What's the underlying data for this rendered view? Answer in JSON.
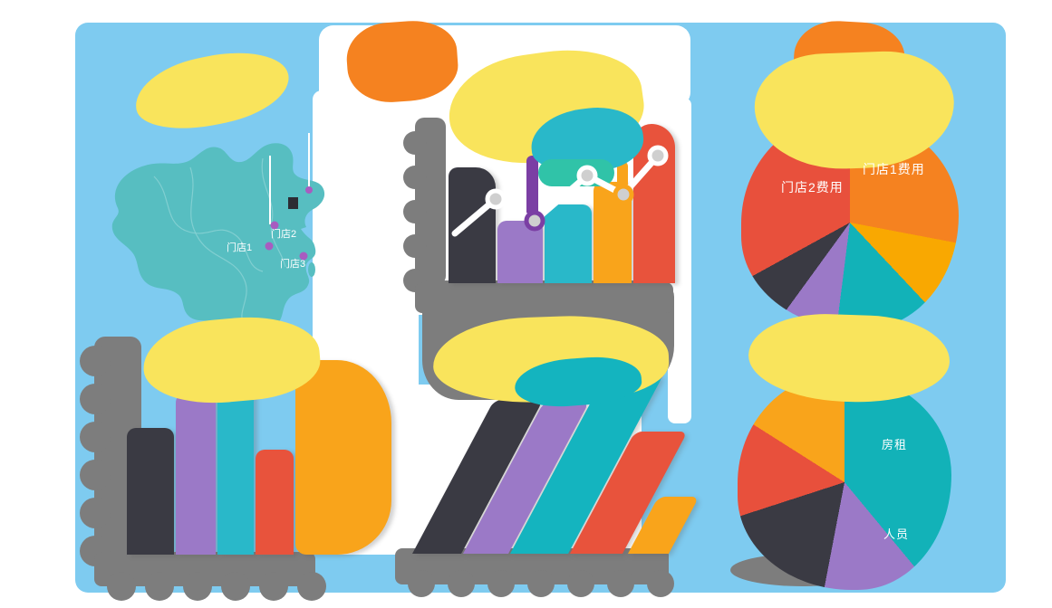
{
  "canvas": {
    "page_background": "#ffffff",
    "board_background": "#7ecbf0"
  },
  "palette": {
    "yellow": "#f9e45c",
    "orange": "#f58220",
    "amber": "#f9a41b",
    "red": "#e8533c",
    "dark": "#3a3a43",
    "purple": "#9b79c7",
    "dark_purple": "#7b3fa4",
    "cyan": "#29b8c9",
    "green_teal": "#30c3a8",
    "map_teal": "#57bec1",
    "pie_teal": "#12b2b8",
    "axis_gray": "#7d7d7d",
    "dot_gray": "#cfcfcf",
    "label_text": "#ffffff"
  },
  "chart_data": [
    {
      "type": "map",
      "name": "store-locations-map",
      "region_style": "china-silhouette",
      "markers": [
        {
          "label": "门店1"
        },
        {
          "label": "门店2"
        },
        {
          "label": "门店3"
        }
      ]
    },
    {
      "type": "bar",
      "name": "trend-bar-line-combo",
      "bars": {
        "values": [
          72,
          39,
          49,
          63,
          99
        ],
        "colors": [
          "#3a3a43",
          "#9b79c7",
          "#29b8c9",
          "#f9a41b",
          "#e8533c"
        ]
      },
      "line": {
        "values": [
          31,
          52,
          39,
          67,
          55,
          79
        ],
        "dot_indices": [
          1,
          2,
          3,
          4,
          5
        ]
      },
      "ylim": [
        0,
        100
      ],
      "gridlines": false
    },
    {
      "type": "pie",
      "name": "store-expense-share-pie",
      "start_angle": 0,
      "slices": [
        {
          "label": "门店1费用",
          "value": 28,
          "color": "#f58220"
        },
        {
          "label": "",
          "value": 10,
          "color": "#f9a801"
        },
        {
          "label": "",
          "value": 14,
          "color": "#12b2b8"
        },
        {
          "label": "",
          "value": 8,
          "color": "#9b79c7"
        },
        {
          "label": "",
          "value": 7,
          "color": "#3a3a43"
        },
        {
          "label": "门店2费用",
          "value": 33,
          "color": "#e8503c"
        }
      ]
    },
    {
      "type": "bar",
      "name": "store-comparison-bars",
      "values": [
        65,
        83,
        86,
        54,
        100
      ],
      "colors": [
        "#3a3a43",
        "#9b79c7",
        "#29b8c9",
        "#e8533c",
        "#f9a41b"
      ],
      "ylim": [
        0,
        100
      ],
      "gridlines": false
    },
    {
      "type": "bar",
      "name": "slanted-comparison-bars",
      "style": "skewed",
      "values": [
        86,
        85,
        100,
        68,
        32
      ],
      "colors": [
        "#3a3a43",
        "#9b79c7",
        "#14b4bf",
        "#e8533c",
        "#f9a41b"
      ],
      "ylim": [
        0,
        100
      ],
      "gridlines": false
    },
    {
      "type": "pie",
      "name": "cost-breakdown-pie",
      "start_angle": 0,
      "slices": [
        {
          "label": "房租",
          "value": 39,
          "color": "#12b2b8"
        },
        {
          "label": "人员",
          "value": 14,
          "color": "#9b79c7"
        },
        {
          "label": "",
          "value": 17,
          "color": "#3a3a43"
        },
        {
          "label": "",
          "value": 14,
          "color": "#e8503c"
        },
        {
          "label": "",
          "value": 16,
          "color": "#f9a41b"
        }
      ]
    }
  ]
}
